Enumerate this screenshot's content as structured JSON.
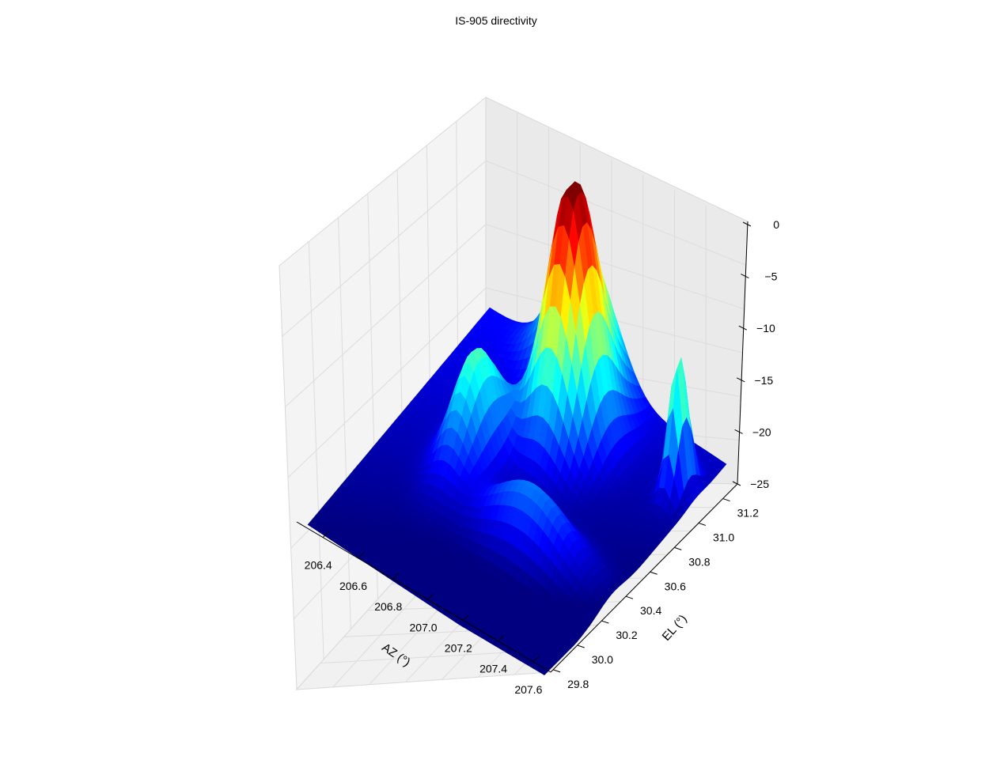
{
  "chart_data": {
    "type": "surface",
    "title": "IS-905 directivity",
    "xlabel": "AZ (°)",
    "ylabel": "EL (°)",
    "zlabel": "",
    "x_ticks": [
      "206.4",
      "206.6",
      "206.8",
      "207.0",
      "207.2",
      "207.4",
      "207.6"
    ],
    "y_ticks": [
      "29.8",
      "30.0",
      "30.2",
      "30.4",
      "30.6",
      "30.8",
      "31.0",
      "31.2"
    ],
    "z_ticks": [
      "0",
      "−5",
      "−10",
      "−15",
      "−20",
      "−25"
    ],
    "xlim": [
      206.25,
      207.7
    ],
    "ylim": [
      29.78,
      31.32
    ],
    "zlim": [
      -25,
      0
    ],
    "colormap": "jet",
    "grid": true,
    "surface_features": [
      {
        "feature": "main-lobe-peak",
        "az": 207.0,
        "el": 30.95,
        "z": 0
      },
      {
        "feature": "side-lobe-left",
        "az": 206.7,
        "el": 30.6,
        "z": -13
      },
      {
        "feature": "side-lobe-left-back",
        "az": 206.85,
        "el": 31.2,
        "z": -10
      },
      {
        "feature": "side-lobe-right",
        "az": 207.55,
        "el": 31.05,
        "z": -10
      },
      {
        "feature": "ridge-front",
        "az": 207.2,
        "el": 30.4,
        "z": -15
      },
      {
        "feature": "null-front",
        "az": 207.6,
        "el": 29.85,
        "z": -25
      }
    ]
  }
}
